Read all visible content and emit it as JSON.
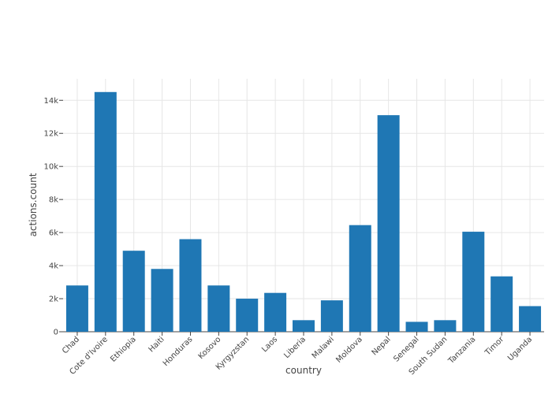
{
  "chart_data": {
    "type": "bar",
    "categories": [
      "Chad",
      "Cote d'Ivoire",
      "Ethiopia",
      "Haiti",
      "Honduras",
      "Kosovo",
      "Kyrgyzstan",
      "Laos",
      "Liberia",
      "Malawi",
      "Moldova",
      "Nepal",
      "Senegal",
      "South Sudan",
      "Tanzania",
      "Timor",
      "Uganda"
    ],
    "values": [
      2800,
      14500,
      4900,
      3800,
      5600,
      2800,
      2000,
      2350,
      700,
      1900,
      6450,
      13100,
      600,
      700,
      6050,
      3350,
      1550
    ],
    "xlabel": "country",
    "ylabel": "actions.count",
    "ylim": [
      0,
      15300
    ],
    "yticks": [
      0,
      2000,
      4000,
      6000,
      8000,
      10000,
      12000,
      14000
    ],
    "ytick_labels": [
      "0",
      "2k",
      "4k",
      "6k",
      "8k",
      "10k",
      "12k",
      "14k"
    ],
    "grid": true,
    "bar_color": "#1f77b4",
    "grid_color": "#e6e6e6"
  }
}
